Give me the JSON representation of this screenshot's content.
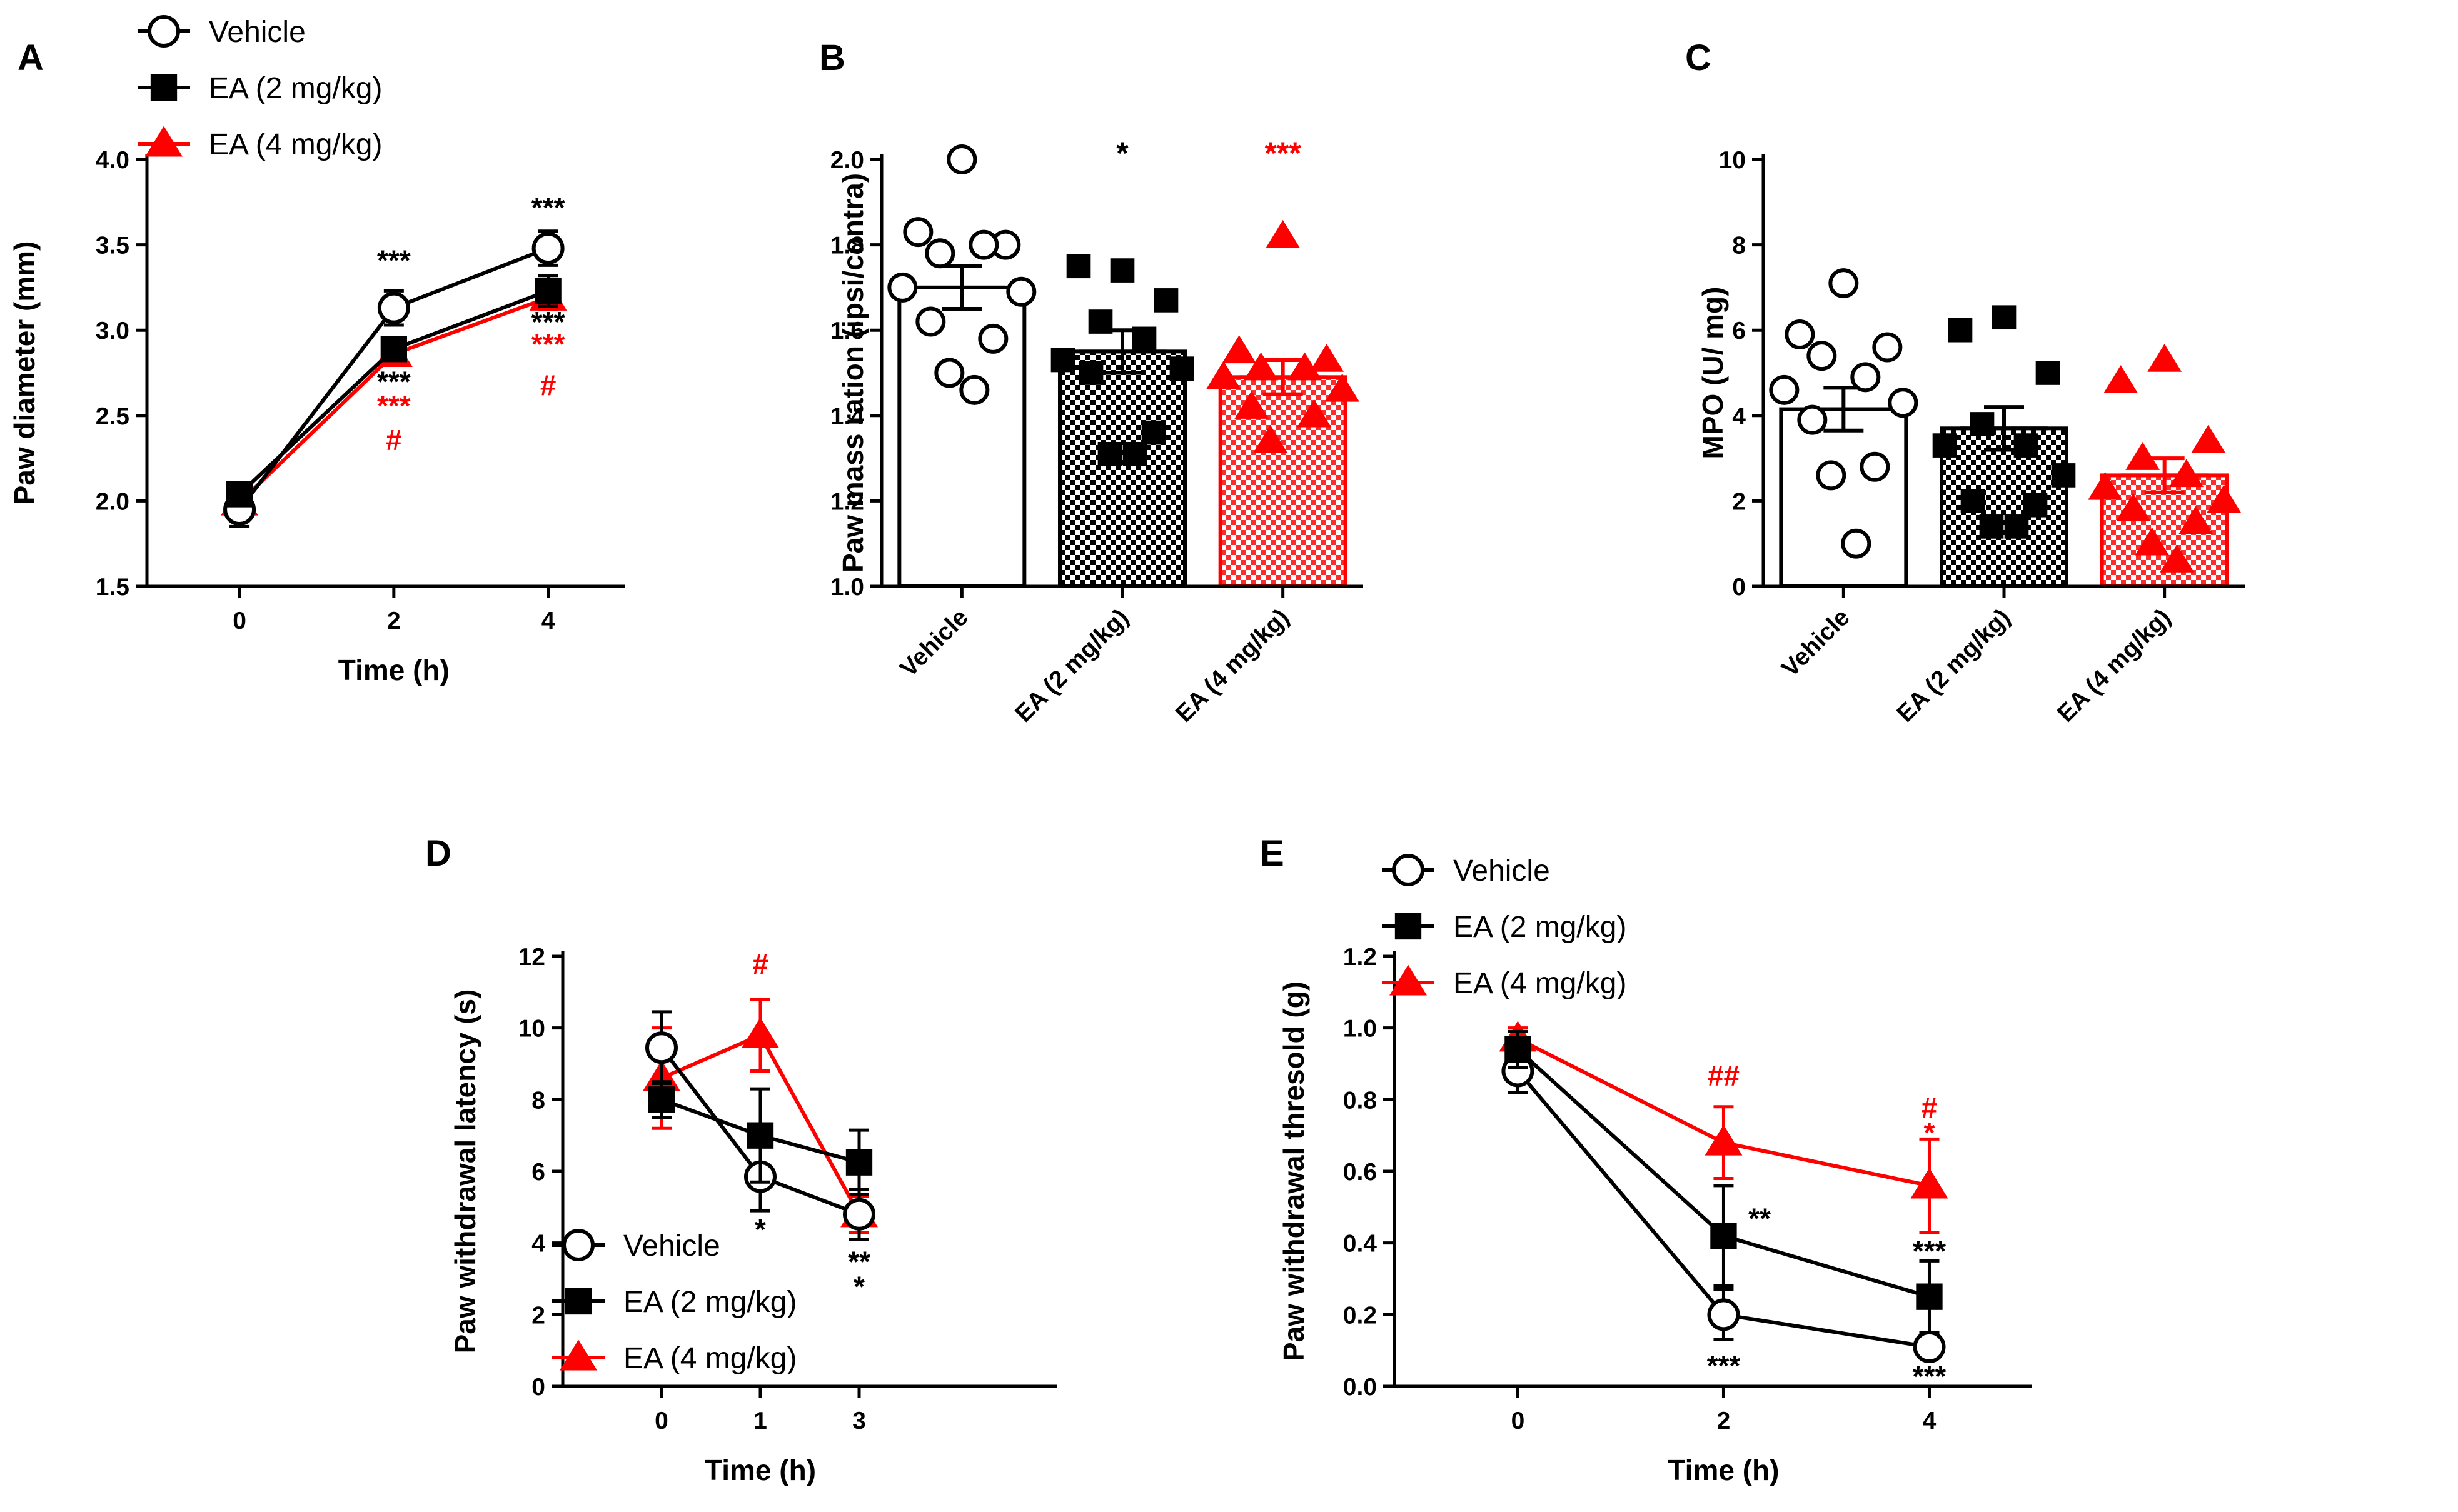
{
  "colors": {
    "black": "#000000",
    "red": "#ff0000"
  },
  "chart_data": [
    {
      "panel": "A",
      "type": "line",
      "title": "",
      "xlabel": "Time (h)",
      "ylabel": "Paw diameter (mm)",
      "x": [
        0,
        2,
        4
      ],
      "xlim": [
        -1.2,
        5.0
      ],
      "xticks": [
        "0",
        "2",
        "4"
      ],
      "ylim": [
        1.5,
        4.0
      ],
      "yticks": [
        "1.5",
        "2.0",
        "2.5",
        "3.0",
        "3.5",
        "4.0"
      ],
      "ytick_values": [
        1.5,
        2.0,
        2.5,
        3.0,
        3.5,
        4.0
      ],
      "legend": [
        "Vehicle",
        "EA (2 mg/kg)",
        "EA (4 mg/kg)"
      ],
      "series": [
        {
          "name": "Vehicle",
          "marker": "open-circle",
          "color": "#000000",
          "values": [
            1.95,
            3.13,
            3.48
          ],
          "sem": [
            0.1,
            0.1,
            0.1
          ]
        },
        {
          "name": "EA (2 mg/kg)",
          "marker": "square",
          "color": "#000000",
          "values": [
            2.04,
            2.89,
            3.23
          ],
          "sem": [
            0.05,
            0.05,
            0.09
          ]
        },
        {
          "name": "EA (4 mg/kg)",
          "marker": "triangle",
          "color": "#ff0000",
          "values": [
            1.99,
            2.86,
            3.19
          ],
          "sem": [
            0.04,
            0.04,
            0.07
          ]
        }
      ],
      "annotations": [
        {
          "text": "***",
          "color": "#000000",
          "x": 2,
          "y": 3.35
        },
        {
          "text": "***",
          "color": "#000000",
          "x": 2,
          "y": 2.64
        },
        {
          "text": "***",
          "color": "#ff0000",
          "x": 2,
          "y": 2.5
        },
        {
          "text": "#",
          "color": "#ff0000",
          "x": 2,
          "y": 2.3
        },
        {
          "text": "***",
          "color": "#000000",
          "x": 4,
          "y": 3.66
        },
        {
          "text": "***",
          "color": "#000000",
          "x": 4,
          "y": 2.99
        },
        {
          "text": "***",
          "color": "#ff0000",
          "x": 4,
          "y": 2.86
        },
        {
          "text": "#",
          "color": "#ff0000",
          "x": 4,
          "y": 2.62
        }
      ]
    },
    {
      "panel": "B",
      "type": "bar",
      "title": "",
      "xlabel": "",
      "ylabel": "Paw mass ration (ipsi/contra)",
      "categories": [
        "Vehicle",
        "EA (2 mg/kg)",
        "EA (4 mg/kg)"
      ],
      "values": [
        1.7,
        1.55,
        1.49
      ],
      "sem": [
        0.05,
        0.05,
        0.04
      ],
      "ylim": [
        1.0,
        2.0
      ],
      "yticks": [
        "1.0",
        "1.2",
        "1.4",
        "1.6",
        "1.8",
        "2.0"
      ],
      "ytick_values": [
        1.0,
        1.2,
        1.4,
        1.6,
        1.8,
        2.0
      ],
      "bar_styles": [
        "open",
        "checker-black",
        "checker-red"
      ],
      "points": [
        [
          2.0,
          1.83,
          1.8,
          1.78,
          1.8,
          1.7,
          1.69,
          1.62,
          1.58,
          1.5,
          1.46
        ],
        [
          1.74,
          1.75,
          1.67,
          1.62,
          1.58,
          1.53,
          1.51,
          1.5,
          1.36,
          1.31,
          1.31
        ],
        [
          1.82,
          1.55,
          1.53,
          1.51,
          1.51,
          1.49,
          1.46,
          1.42,
          1.4,
          1.34
        ]
      ],
      "point_markers": [
        "open-circle",
        "square",
        "triangle"
      ],
      "annotations": [
        {
          "text": "*",
          "color": "#000000",
          "category": 1,
          "y": 1.99
        },
        {
          "text": "***",
          "color": "#ff0000",
          "category": 2,
          "y": 1.99
        }
      ]
    },
    {
      "panel": "C",
      "type": "bar",
      "title": "",
      "xlabel": "",
      "ylabel": "MPO (U/ mg)",
      "categories": [
        "Vehicle",
        "EA (2 mg/kg)",
        "EA (4 mg/kg)"
      ],
      "values": [
        4.15,
        3.7,
        2.6
      ],
      "sem": [
        0.5,
        0.5,
        0.4
      ],
      "ylim": [
        0,
        10
      ],
      "yticks": [
        "0",
        "2",
        "4",
        "6",
        "8",
        "10"
      ],
      "ytick_values": [
        0,
        2,
        4,
        6,
        8,
        10
      ],
      "bar_styles": [
        "open",
        "checker-black",
        "checker-red"
      ],
      "points": [
        [
          7.1,
          5.9,
          5.6,
          5.4,
          4.9,
          4.6,
          4.3,
          3.9,
          2.8,
          2.6,
          1.0
        ],
        [
          6.3,
          6.0,
          5.0,
          3.8,
          3.3,
          3.3,
          2.6,
          2.0,
          1.9,
          1.4,
          1.4
        ],
        [
          5.3,
          4.8,
          3.4,
          3.0,
          2.6,
          2.3,
          2.0,
          1.8,
          1.5,
          1.0,
          0.6
        ]
      ],
      "point_markers": [
        "open-circle",
        "square",
        "triangle"
      ]
    },
    {
      "panel": "D",
      "type": "line",
      "title": "",
      "xlabel": "Time (h)",
      "ylabel": "Paw withdrawal latency (s)",
      "x": [
        0,
        1,
        3
      ],
      "xlim": [
        -1.0,
        4.0
      ],
      "xticks": [
        "0",
        "1",
        "3"
      ],
      "x_positions": [
        0,
        1,
        2
      ],
      "ylim": [
        0,
        12
      ],
      "yticks": [
        "0",
        "2",
        "4",
        "6",
        "8",
        "10",
        "12"
      ],
      "ytick_values": [
        0,
        2,
        4,
        6,
        8,
        10,
        12
      ],
      "legend": [
        "Vehicle",
        "EA (2 mg/kg)",
        "EA (4 mg/kg)"
      ],
      "series": [
        {
          "name": "Vehicle",
          "marker": "open-circle",
          "color": "#000000",
          "values": [
            9.45,
            5.85,
            4.8
          ],
          "sem": [
            1.0,
            0.95,
            0.7
          ]
        },
        {
          "name": "EA (2 mg/kg)",
          "marker": "square",
          "color": "#000000",
          "values": [
            8.0,
            7.0,
            6.25
          ],
          "sem": [
            0.5,
            1.3,
            0.9
          ]
        },
        {
          "name": "EA (4 mg/kg)",
          "marker": "triangle",
          "color": "#ff0000",
          "values": [
            8.6,
            9.8,
            4.8
          ],
          "sem": [
            1.4,
            1.0,
            0.5
          ]
        }
      ],
      "annotations": [
        {
          "text": "#",
          "color": "#ff0000",
          "x": 1,
          "y": 11.5
        },
        {
          "text": "*",
          "color": "#000000",
          "x": 1,
          "y": 4.1
        },
        {
          "text": "**",
          "color": "#000000",
          "x": 3,
          "y": 3.2
        },
        {
          "text": "*",
          "color": "#000000",
          "x": 3,
          "y": 2.5
        }
      ]
    },
    {
      "panel": "E",
      "type": "line",
      "title": "",
      "xlabel": "Time (h)",
      "ylabel": "Paw withdrawal thresold (g)",
      "x": [
        0,
        2,
        4
      ],
      "xlim": [
        -1.2,
        5.0
      ],
      "xticks": [
        "0",
        "2",
        "4"
      ],
      "ylim": [
        0,
        1.2
      ],
      "yticks": [
        "0.0",
        "0.2",
        "0.4",
        "0.6",
        "0.8",
        "1.0",
        "1.2"
      ],
      "ytick_values": [
        0,
        0.2,
        0.4,
        0.6,
        0.8,
        1.0,
        1.2
      ],
      "legend": [
        "Vehicle",
        "EA (2 mg/kg)",
        "EA (4 mg/kg)"
      ],
      "series": [
        {
          "name": "Vehicle",
          "marker": "open-circle",
          "color": "#000000",
          "values": [
            0.88,
            0.2,
            0.11
          ],
          "sem": [
            0.06,
            0.07,
            0.02
          ]
        },
        {
          "name": "EA (2 mg/kg)",
          "marker": "square",
          "color": "#000000",
          "values": [
            0.94,
            0.42,
            0.25
          ],
          "sem": [
            0.05,
            0.14,
            0.1
          ]
        },
        {
          "name": "EA (4 mg/kg)",
          "marker": "triangle",
          "color": "#ff0000",
          "values": [
            0.97,
            0.68,
            0.56
          ],
          "sem": [
            0.03,
            0.1,
            0.13
          ]
        }
      ],
      "annotations": [
        {
          "text": "##",
          "color": "#ff0000",
          "x": 2,
          "y": 0.84
        },
        {
          "text": "**",
          "color": "#000000",
          "x": 2.35,
          "y": 0.44
        },
        {
          "text": "***",
          "color": "#000000",
          "x": 2,
          "y": 0.03
        },
        {
          "text": "#",
          "color": "#ff0000",
          "x": 4,
          "y": 0.75
        },
        {
          "text": "*",
          "color": "#ff0000",
          "x": 4,
          "y": 0.68
        },
        {
          "text": "***",
          "color": "#000000",
          "x": 4,
          "y": 0.35
        },
        {
          "text": "***",
          "color": "#000000",
          "x": 4,
          "y": 0.0
        }
      ]
    }
  ]
}
